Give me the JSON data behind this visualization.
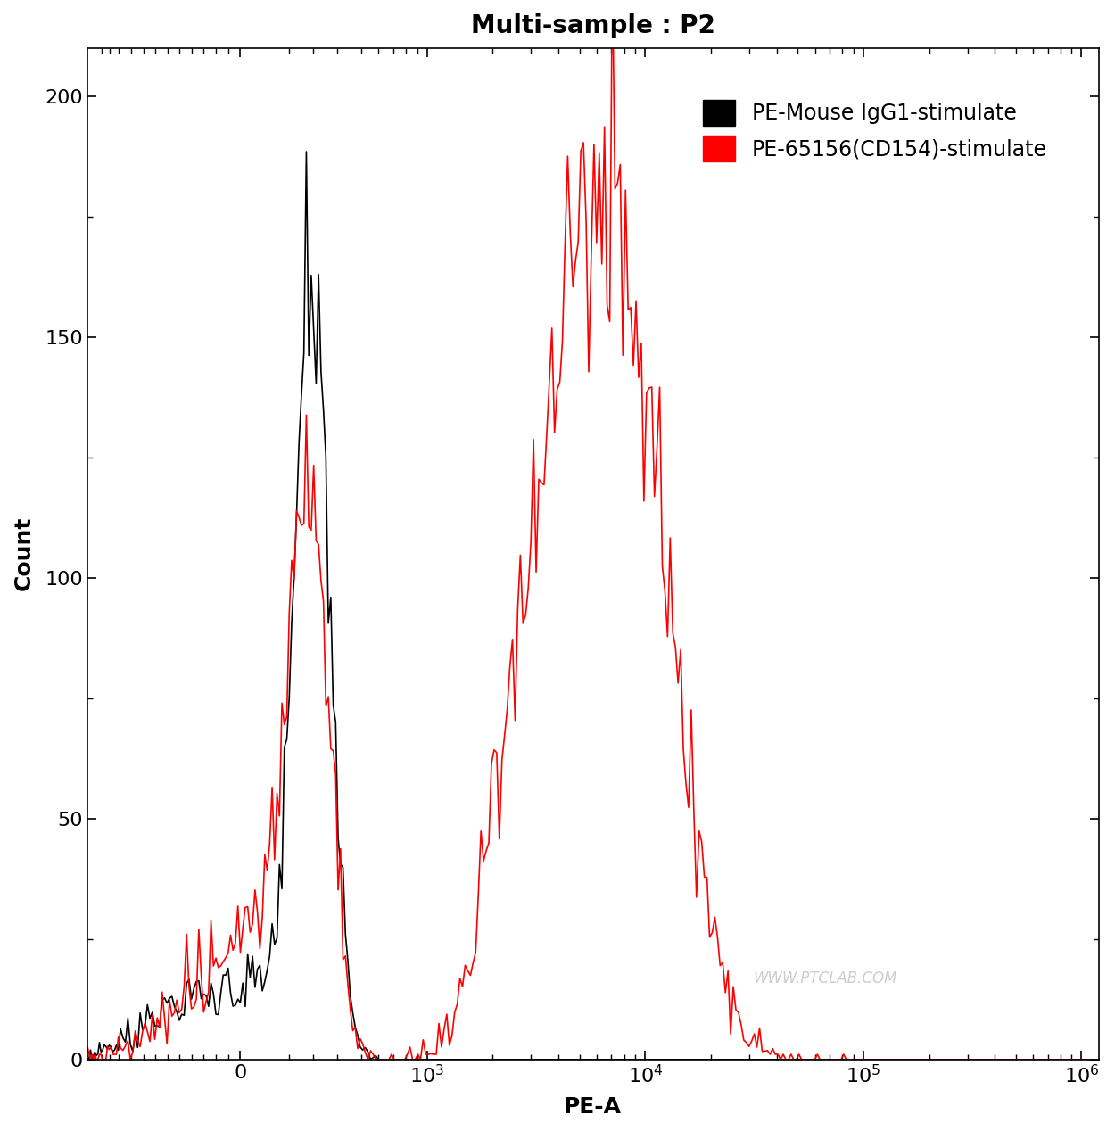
{
  "title": "Multi-sample : P2",
  "xlabel": "PE-A",
  "ylabel": "Count",
  "ylim": [
    0,
    210
  ],
  "yticks": [
    0,
    50,
    100,
    150,
    200
  ],
  "legend_entries": [
    "PE-Mouse IgG1-stimulate",
    "PE-65156(CD154)-stimulate"
  ],
  "legend_colors": [
    "#000000",
    "#ff0000"
  ],
  "background_color": "#ffffff",
  "title_fontsize": 20,
  "axis_fontsize": 18,
  "tick_fontsize": 16,
  "legend_fontsize": 17,
  "watermark": "WWW.PTCLAB.COM",
  "linthresh": 500,
  "linscale": 0.5
}
